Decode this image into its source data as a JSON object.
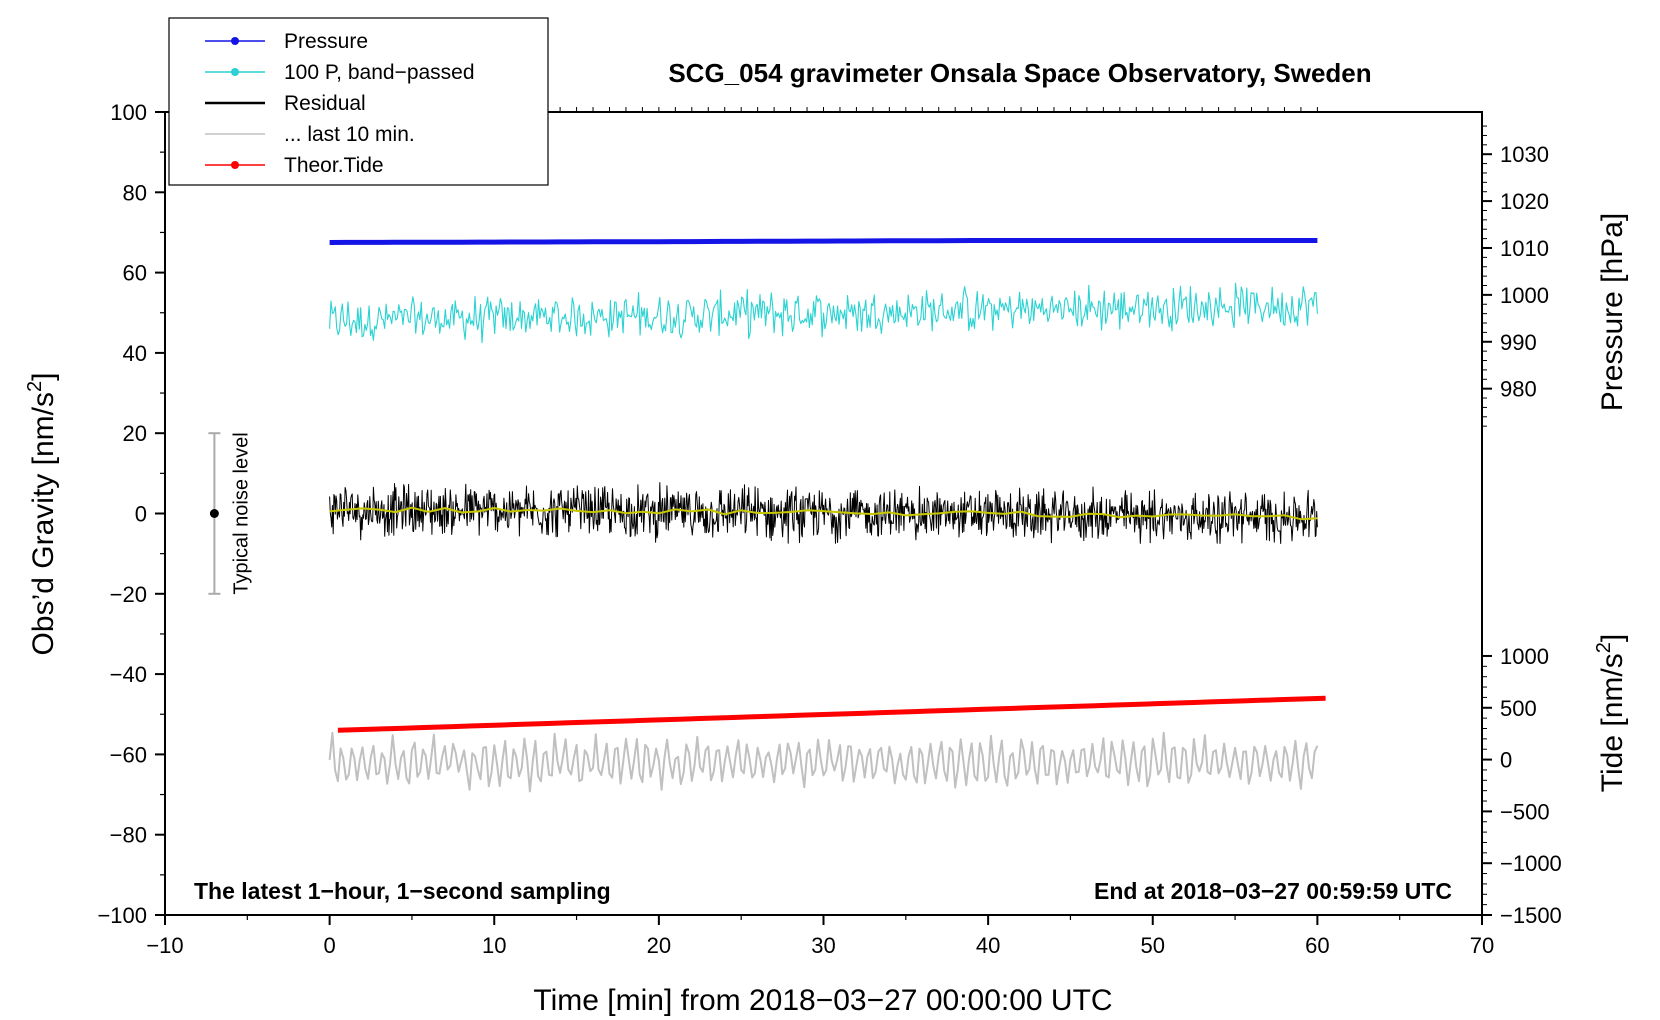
{
  "chart_data": {
    "type": "line",
    "title": "SCG_054 gravimeter Onsala Space Observatory, Sweden",
    "xlabel": "Time [min] from 2018−03−27 00:00:00 UTC",
    "ylabel": "Obs’d Gravity [nm/s",
    "ylabel_sup": "2",
    "ylabel_end": "]",
    "xlim": [
      -10,
      70
    ],
    "ylim": [
      -100,
      100
    ],
    "x_ticks": [
      -10,
      0,
      10,
      20,
      30,
      40,
      50,
      60,
      70
    ],
    "x_tick_labels": [
      "−10",
      "0",
      "10",
      "20",
      "30",
      "40",
      "50",
      "60",
      "70"
    ],
    "y_ticks": [
      -100,
      -80,
      -60,
      -40,
      -20,
      0,
      20,
      40,
      60,
      80,
      100
    ],
    "y_tick_labels": [
      "−100",
      "−80",
      "−60",
      "−40",
      "−20",
      "0",
      "20",
      "40",
      "60",
      "80",
      "100"
    ],
    "right_axes": {
      "pressure": {
        "label": "Pressure [hPa]",
        "ticks": [
          980,
          990,
          1000,
          1010,
          1020,
          1030
        ],
        "tick_labels": [
          "980",
          "990",
          "1000",
          "1010",
          "1020",
          "1030"
        ],
        "left_axis_equivalent": [
          20,
          100
        ]
      },
      "tide": {
        "label": "Tide [nm/s",
        "label_sup": "2",
        "label_end": "]",
        "ticks": [
          -1500,
          -1000,
          -500,
          0,
          500,
          1000
        ],
        "tick_labels": [
          "−1500",
          "−1000",
          "−500",
          "0",
          "500",
          "1000"
        ],
        "left_axis_equivalent": [
          -100,
          -20
        ]
      }
    },
    "legend": {
      "position": "top-left",
      "entries": [
        {
          "label": "Pressure",
          "color": "#1414e6",
          "marker": true
        },
        {
          "label": "100 P, band−passed",
          "color": "#2ad2d2",
          "marker": true
        },
        {
          "label": "Residual",
          "color": "#000000",
          "marker": false
        },
        {
          "label": "... last 10 min.",
          "color": "#c0c0c0",
          "marker": false
        },
        {
          "label": "Theor.Tide",
          "color": "#ff0000",
          "marker": true
        }
      ]
    },
    "series": [
      {
        "name": "Pressure",
        "color": "#1414e6",
        "x_range": [
          0,
          60
        ],
        "values_left_axis": [
          67.5,
          67.7,
          68.0,
          68.0
        ],
        "kind": "thick-line"
      },
      {
        "name": "100 P, band−passed",
        "color": "#2ad2d2",
        "x_range": [
          0,
          60
        ],
        "mean_left_axis": 50,
        "amplitude": 6,
        "kind": "noise"
      },
      {
        "name": "Residual",
        "color": "#000000",
        "x_range": [
          0,
          60
        ],
        "mean_left_axis": 0,
        "amplitude": 7,
        "kind": "noise"
      },
      {
        "name": "Residual smoothed",
        "color": "#c8c800",
        "x_range": [
          0,
          60
        ],
        "values_left_axis": [
          1.0,
          0.5,
          0.0,
          -1.0
        ],
        "kind": "line"
      },
      {
        "name": "... last 10 min.",
        "color": "#c0c0c0",
        "x_range": [
          0,
          60
        ],
        "mean_left_axis": -62,
        "amplitude": 6,
        "kind": "wave"
      },
      {
        "name": "Theor.Tide",
        "color": "#ff0000",
        "x_range": [
          0.5,
          60.5
        ],
        "values_left_axis": [
          -54,
          -46
        ],
        "kind": "thick-line"
      }
    ],
    "noise_bar": {
      "label": "Typical noise level",
      "x": -7,
      "center": 0,
      "low": -20,
      "high": 20
    },
    "annotations": {
      "bottom_left": "The latest 1−hour, 1−second sampling",
      "bottom_right": "End at 2018−03−27 00:59:59 UTC"
    }
  }
}
